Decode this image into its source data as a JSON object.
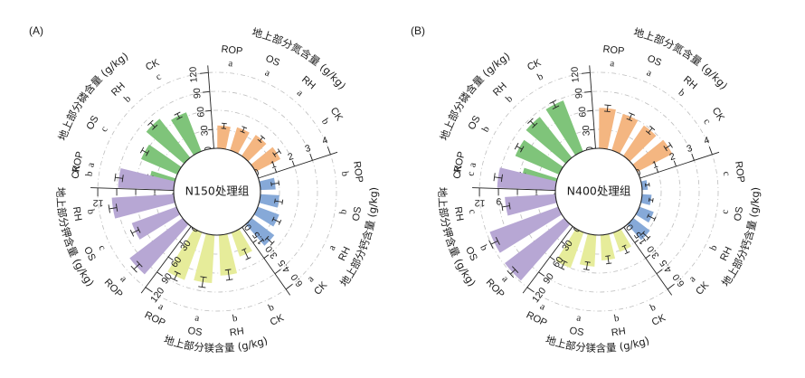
{
  "chart_data": [
    {
      "panel": "(A)",
      "type": "radial-bar",
      "center_label": "N150处理组",
      "groups": [
        {
          "key": "P",
          "title": "地上部分磷含量 (g/kg)",
          "color": "#7fc47a",
          "ticks": [
            "0",
            "3",
            "6",
            "9",
            "12"
          ],
          "max": 12,
          "items": [
            {
              "cat": "ROP",
              "value": 4.0,
              "err": 0.4,
              "sig": "a"
            },
            {
              "cat": "OS",
              "value": 6.2,
              "err": 0.5,
              "sig": "c"
            },
            {
              "cat": "RH",
              "value": 7.8,
              "err": 0.5,
              "sig": "b"
            },
            {
              "cat": "CK",
              "value": 6.6,
              "err": 0.4,
              "sig": "c"
            }
          ]
        },
        {
          "key": "N",
          "title": "地上部分氮含量 (g/kg)",
          "color": "#f4b681",
          "ticks": [
            "0",
            "30",
            "60",
            "90",
            "120"
          ],
          "max": 120,
          "items": [
            {
              "cat": "ROP",
              "value": 36,
              "err": 4,
              "sig": "a"
            },
            {
              "cat": "OS",
              "value": 38,
              "err": 4,
              "sig": "a"
            },
            {
              "cat": "RH",
              "value": 40,
              "err": 4,
              "sig": "a"
            },
            {
              "cat": "CK",
              "value": 44,
              "err": 5,
              "sig": "b"
            }
          ]
        },
        {
          "key": "Ca",
          "title": "地上部分钙含量 (g/kg)",
          "color": "#86a9d8",
          "ticks": [
            "0",
            "1",
            "2",
            "3",
            "4"
          ],
          "max": 4,
          "items": [
            {
              "cat": "ROP",
              "value": 0.8,
              "err": 0.2,
              "sig": "b"
            },
            {
              "cat": "OS",
              "value": 1.0,
              "err": 0.2,
              "sig": "b"
            },
            {
              "cat": "RH",
              "value": 1.2,
              "err": 0.2,
              "sig": "a"
            },
            {
              "cat": "CK",
              "value": 1.5,
              "err": 0.2,
              "sig": "a"
            }
          ]
        },
        {
          "key": "Mg",
          "title": "地上部分镁含量 (g/kg)",
          "color": "#e6ec9a",
          "ticks": [
            "0.0",
            "1.5",
            "3.0",
            "4.5",
            "6.0"
          ],
          "max": 6,
          "items": [
            {
              "cat": "CK",
              "value": 2.0,
              "err": 0.4,
              "sig": "b"
            },
            {
              "cat": "RH",
              "value": 3.2,
              "err": 0.4,
              "sig": "b"
            },
            {
              "cat": "OS",
              "value": 3.8,
              "err": 0.4,
              "sig": "a"
            },
            {
              "cat": "ROP",
              "value": 4.0,
              "err": 0.3,
              "sig": "a"
            }
          ]
        },
        {
          "key": "K",
          "title": "地上部分钾含量 (g/kg)",
          "color": "#b7a7d4",
          "ticks": [
            "0",
            "30",
            "60",
            "90",
            "120"
          ],
          "max": 120,
          "items": [
            {
              "cat": "ROP",
              "value": 105,
              "err": 6,
              "sig": "a"
            },
            {
              "cat": "OS",
              "value": 75,
              "err": 6,
              "sig": "c"
            },
            {
              "cat": "RH",
              "value": 98,
              "err": 6,
              "sig": "b"
            },
            {
              "cat": "CK",
              "value": 88,
              "err": 6,
              "sig": "b"
            }
          ]
        }
      ]
    },
    {
      "panel": "(B)",
      "type": "radial-bar",
      "center_label": "N400处理组",
      "groups": [
        {
          "key": "P",
          "title": "地上部分磷含量 (g/kg)",
          "color": "#7fc47a",
          "ticks": [
            "0",
            "3",
            "6",
            "9",
            "12"
          ],
          "max": 12,
          "items": [
            {
              "cat": "ROP",
              "value": 5.5,
              "err": 0.4,
              "sig": "a"
            },
            {
              "cat": "OS",
              "value": 7.5,
              "err": 0.5,
              "sig": "b"
            },
            {
              "cat": "RH",
              "value": 8.2,
              "err": 0.5,
              "sig": "b"
            },
            {
              "cat": "CK",
              "value": 8.6,
              "err": 0.5,
              "sig": "b"
            }
          ]
        },
        {
          "key": "N",
          "title": "地上部分氮含量 (g/kg)",
          "color": "#f4b681",
          "ticks": [
            "0",
            "30",
            "60",
            "90",
            "120"
          ],
          "max": 120,
          "items": [
            {
              "cat": "ROP",
              "value": 64,
              "err": 5,
              "sig": "a"
            },
            {
              "cat": "OS",
              "value": 60,
              "err": 5,
              "sig": "a"
            },
            {
              "cat": "RH",
              "value": 58,
              "err": 5,
              "sig": "b"
            },
            {
              "cat": "CK",
              "value": 62,
              "err": 5,
              "sig": "c"
            }
          ]
        },
        {
          "key": "Ca",
          "title": "地上部分钙含量 (g/kg)",
          "color": "#86a9d8",
          "ticks": [
            "0",
            "1",
            "2",
            "3",
            "4"
          ],
          "max": 4,
          "items": [
            {
              "cat": "ROP",
              "value": 0.3,
              "err": 0.1,
              "sig": "c"
            },
            {
              "cat": "OS",
              "value": 0.5,
              "err": 0.1,
              "sig": "c"
            },
            {
              "cat": "RH",
              "value": 0.8,
              "err": 0.2,
              "sig": "b"
            },
            {
              "cat": "CK",
              "value": 1.1,
              "err": 0.2,
              "sig": "a"
            }
          ]
        },
        {
          "key": "Mg",
          "title": "地上部分镁含量 (g/kg)",
          "color": "#e6ec9a",
          "ticks": [
            "0.0",
            "1.5",
            "3.0",
            "4.5",
            "6.0"
          ],
          "max": 6,
          "items": [
            {
              "cat": "CK",
              "value": 1.6,
              "err": 0.3,
              "sig": "b"
            },
            {
              "cat": "RH",
              "value": 2.0,
              "err": 0.3,
              "sig": "b"
            },
            {
              "cat": "OS",
              "value": 2.5,
              "err": 0.3,
              "sig": "a"
            },
            {
              "cat": "ROP",
              "value": 3.0,
              "err": 0.3,
              "sig": "a"
            }
          ]
        },
        {
          "key": "K",
          "title": "地上部分钾含量 (g/kg)",
          "color": "#b7a7d4",
          "ticks": [
            "0",
            "30",
            "60",
            "90",
            "120"
          ],
          "max": 120,
          "items": [
            {
              "cat": "ROP",
              "value": 118,
              "err": 6,
              "sig": "a"
            },
            {
              "cat": "OS",
              "value": 115,
              "err": 6,
              "sig": "b"
            },
            {
              "cat": "RH",
              "value": 80,
              "err": 6,
              "sig": "c"
            },
            {
              "cat": "CK",
              "value": 92,
              "err": 6,
              "sig": "c"
            }
          ]
        }
      ]
    }
  ]
}
